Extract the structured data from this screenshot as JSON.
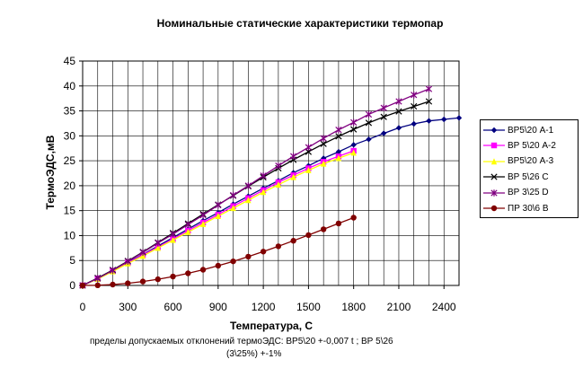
{
  "chart_data": {
    "type": "line",
    "title": "Номинальные статические характеристики термопар",
    "xlabel": "Температура,  С",
    "ylabel": "ТермоЭДС,мВ",
    "xlim": [
      0,
      2500
    ],
    "ylim": [
      0,
      45
    ],
    "xticks": [
      "0",
      "300",
      "600",
      "900",
      "1200",
      "1500",
      "1800",
      "2100",
      "2400"
    ],
    "xtick_values": [
      0,
      300,
      600,
      900,
      1200,
      1500,
      1800,
      2100,
      2400
    ],
    "yticks": [
      "0",
      "5",
      "10",
      "15",
      "20",
      "25",
      "30",
      "35",
      "40",
      "45"
    ],
    "ytick_values": [
      0,
      5,
      10,
      15,
      20,
      25,
      30,
      35,
      40,
      45
    ],
    "grid": true,
    "legend_position": "right",
    "series": [
      {
        "name": "ВР5\\20 А-1",
        "color": "#000080",
        "marker": "diamond",
        "x": [
          0,
          100,
          200,
          300,
          400,
          500,
          600,
          700,
          800,
          900,
          1000,
          1100,
          1200,
          1300,
          1400,
          1500,
          1600,
          1700,
          1800,
          1900,
          2000,
          2100,
          2200,
          2300,
          2400,
          2500
        ],
        "y": [
          0,
          1.4,
          2.9,
          4.6,
          6.2,
          7.9,
          9.6,
          11.3,
          13.0,
          14.6,
          16.3,
          17.9,
          19.5,
          21.0,
          22.6,
          24.0,
          25.5,
          26.8,
          28.2,
          29.3,
          30.5,
          31.6,
          32.4,
          33.0,
          33.3,
          33.6
        ]
      },
      {
        "name": "ВР 5\\20 А-2",
        "color": "#FF00FF",
        "marker": "square",
        "x": [
          0,
          100,
          200,
          300,
          400,
          500,
          600,
          700,
          800,
          900,
          1000,
          1100,
          1200,
          1300,
          1400,
          1500,
          1600,
          1700,
          1800
        ],
        "y": [
          0,
          1.4,
          2.9,
          4.5,
          6.1,
          7.7,
          9.3,
          11.0,
          12.6,
          14.2,
          15.9,
          17.5,
          19.1,
          20.7,
          22.1,
          23.5,
          24.8,
          25.9,
          27.0
        ]
      },
      {
        "name": "ВР5\\20 А-3",
        "color": "#FFFF00",
        "marker": "triangle",
        "x": [
          0,
          100,
          200,
          300,
          400,
          500,
          600,
          700,
          800,
          900,
          1000,
          1100,
          1200,
          1300,
          1400,
          1500,
          1600,
          1700,
          1800
        ],
        "y": [
          0,
          1.3,
          2.8,
          4.4,
          5.9,
          7.5,
          9.1,
          10.7,
          12.3,
          13.9,
          15.5,
          17.1,
          18.7,
          20.2,
          21.7,
          23.1,
          24.4,
          25.5,
          26.6
        ]
      },
      {
        "name": "ВР 5\\26 С",
        "color": "#000000",
        "marker": "x",
        "x": [
          0,
          100,
          200,
          300,
          400,
          500,
          600,
          700,
          800,
          900,
          1000,
          1100,
          1200,
          1300,
          1400,
          1500,
          1600,
          1700,
          1800,
          1900,
          2000,
          2100,
          2200,
          2300
        ],
        "y": [
          0,
          1.5,
          3.1,
          4.9,
          6.7,
          8.6,
          10.5,
          12.4,
          14.3,
          16.2,
          18.0,
          19.9,
          21.7,
          23.5,
          25.2,
          26.8,
          28.4,
          29.9,
          31.3,
          32.6,
          33.8,
          34.9,
          35.9,
          36.9
        ]
      },
      {
        "name": "ВР 3\\25 D",
        "color": "#800080",
        "marker": "asterisk",
        "x": [
          0,
          100,
          200,
          300,
          400,
          500,
          600,
          700,
          800,
          900,
          1000,
          1100,
          1200,
          1300,
          1400,
          1500,
          1600,
          1700,
          1800,
          1900,
          2000,
          2100,
          2200,
          2300
        ],
        "y": [
          0,
          1.4,
          3.0,
          4.8,
          6.6,
          8.5,
          10.3,
          12.2,
          14.1,
          16.1,
          18.1,
          20.0,
          22.0,
          24.0,
          25.9,
          27.7,
          29.5,
          31.2,
          32.7,
          34.3,
          35.6,
          36.9,
          38.2,
          39.4
        ]
      },
      {
        "name": "ПР 30\\6  В",
        "color": "#800000",
        "marker": "circle",
        "x": [
          0,
          100,
          200,
          300,
          400,
          500,
          600,
          700,
          800,
          900,
          1000,
          1100,
          1200,
          1300,
          1400,
          1500,
          1600,
          1700,
          1800
        ],
        "y": [
          0,
          0.03,
          0.18,
          0.43,
          0.79,
          1.24,
          1.79,
          2.43,
          3.15,
          3.96,
          4.83,
          5.78,
          6.79,
          7.85,
          8.96,
          10.1,
          11.26,
          12.43,
          13.59
        ]
      }
    ]
  },
  "footnote": {
    "line1": "пределы допускаемых отклонений термоЭДС:   ВР5\\20 +-0,007 t ;   ВР 5\\26",
    "line2": "(3\\25%) +-1%"
  }
}
